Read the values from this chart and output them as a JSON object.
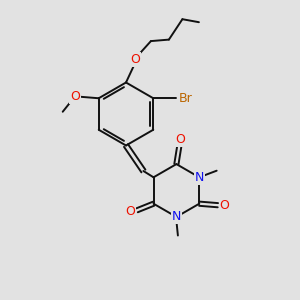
{
  "bg_color": "#e2e2e2",
  "bond_color": "#111111",
  "bond_width": 1.4,
  "atom_colors": {
    "O": "#ee1100",
    "N": "#1111ee",
    "Br": "#bb6600",
    "C": "#111111"
  },
  "font_size": 9.0
}
